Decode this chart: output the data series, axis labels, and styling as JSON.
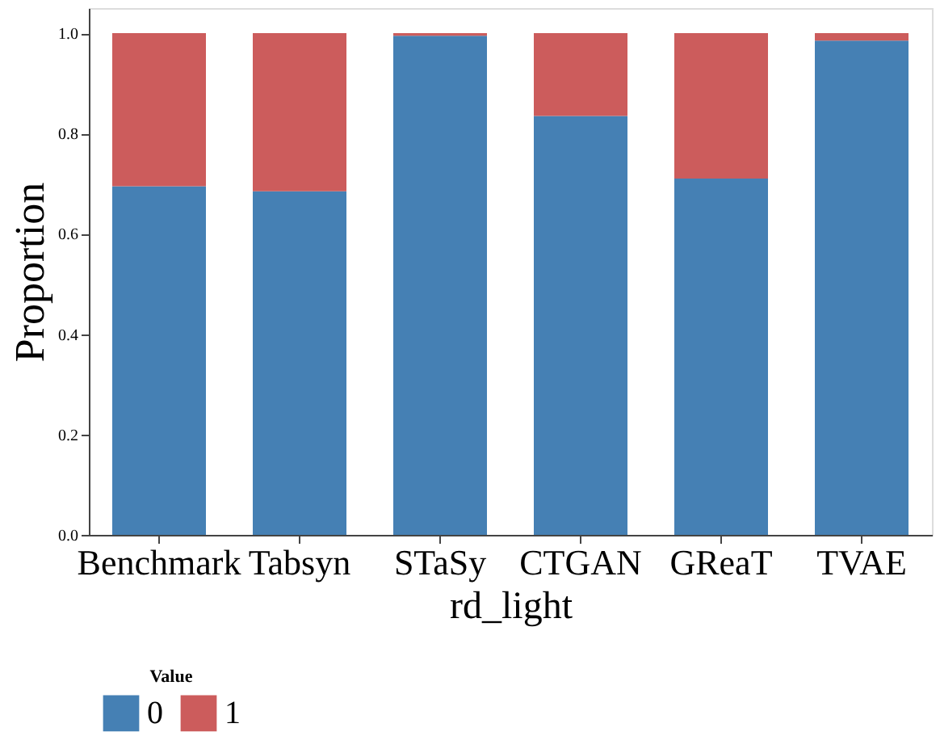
{
  "chart_data": {
    "type": "bar",
    "stacked": true,
    "xlabel": "rd_light",
    "ylabel": "Proportion",
    "legend_title": "Value",
    "categories": [
      "Benchmark",
      "Tabsyn",
      "STaSy",
      "CTGAN",
      "GReaT",
      "TVAE"
    ],
    "series": [
      {
        "name": "0",
        "color": "#4580b4",
        "values": [
          0.695,
          0.685,
          0.995,
          0.835,
          0.71,
          0.985
        ]
      },
      {
        "name": "1",
        "color": "#cc5c5c",
        "values": [
          0.305,
          0.315,
          0.005,
          0.165,
          0.29,
          0.015
        ]
      }
    ],
    "ylim": [
      0,
      1.05
    ],
    "yticks": [
      {
        "value": 0,
        "label": "0.0"
      },
      {
        "value": 0.2,
        "label": "0.2"
      },
      {
        "value": 0.4,
        "label": "0.4"
      },
      {
        "value": 0.6,
        "label": "0.6"
      },
      {
        "value": 0.8,
        "label": "0.8"
      },
      {
        "value": 1,
        "label": "1.0"
      }
    ],
    "grid": false,
    "legend": "bottom"
  }
}
